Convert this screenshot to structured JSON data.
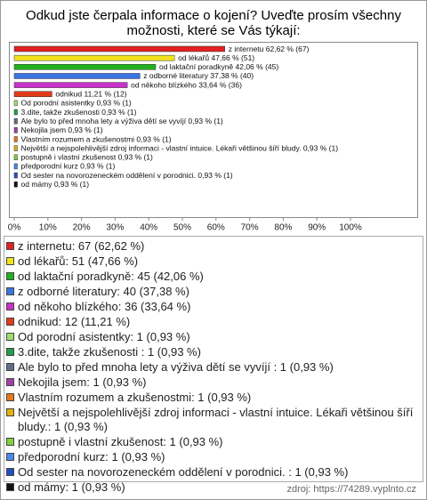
{
  "chart_data": {
    "type": "bar",
    "orientation": "horizontal",
    "title": "Odkud jste čerpala informace o kojení? Uveďte prosím všechny možnosti, které se Vás týkají:",
    "categories": [
      "z internetu",
      "od lékařů",
      "od laktační poradkyně",
      "z odborné literatury",
      "od někoho blízkého",
      "odnikud",
      "Od porodní asistentky",
      "3.dite, takže zkušenosti",
      "Ale bylo to před mnoha lety a výživa dětí se vyvíjí",
      "Nekojila jsem",
      "Vlastním rozumem a zkušenostmi",
      "Největší a nejspolehlivější zdroj informaci - vlastní intuice. Lékaři většinou šíří bludy.",
      "postupně i vlastní zkušenost",
      "předporodní kurz",
      "Od sester na novorozeneckém oddělení v porodnici.",
      "od mámy"
    ],
    "values": [
      62.62,
      47.66,
      42.06,
      37.38,
      33.64,
      11.21,
      0.93,
      0.93,
      0.93,
      0.93,
      0.93,
      0.93,
      0.93,
      0.93,
      0.93,
      0.93
    ],
    "value_labels": [
      "z internetu 62,62 % (67)",
      "od lékařů 47,66 % (51)",
      "od laktační poradkyně 42,06 % (45)",
      "z odborné literatury 37,38 % (40)",
      "od někoho blízkého 33,64 % (36)",
      "odnikud 11,21 % (12)",
      "Od porodní asistentky 0,93 % (1)",
      "3.dite, takže zkušenosti  0,93 % (1)",
      "Ale bylo to před mnoha lety a výživa dětí se vyvíjí  0,93 % (1)",
      "Nekojila jsem 0,93 % (1)",
      "Vlastním rozumem a zkušenostmi 0,93 % (1)",
      "Největší a nejspolehlivější zdroj informaci - vlastní intuice. Lékaři většinou šíří bludy. 0,93 % (1)",
      "postupně i vlastní zkušenost 0,93 % (1)",
      "předporodní kurz 0,93 % (1)",
      "Od sester na novorozeneckém oddělení v porodnici.  0,93 % (1)",
      "od mámy 0,93 % (1)"
    ],
    "legend_labels": [
      "z internetu: 67 (62,62 %)",
      "od lékařů: 51 (47,66 %)",
      "od laktační poradkyně: 45 (42,06 %)",
      "z odborné literatury: 40 (37,38 %)",
      "od někoho blízkého: 36 (33,64 %)",
      "odnikud: 12 (11,21 %)",
      "Od porodní asistentky: 1 (0,93 %)",
      "3.dite, takže zkušenosti : 1 (0,93 %)",
      "Ale bylo to před mnoha lety a výživa dětí se vyvíjí : 1 (0,93 %)",
      "Nekojila jsem: 1 (0,93 %)",
      "Vlastním rozumem a zkušenostmi: 1 (0,93 %)",
      "Největší a nejspolehlivější zdroj informaci - vlastní intuice. Lékaři většinou šíří bludy.: 1 (0,93 %)",
      "postupně i vlastní zkušenost: 1 (0,93 %)",
      "předporodní kurz: 1 (0,93 %)",
      "Od sester na novorozeneckém oddělení v porodnici. : 1 (0,93 %)",
      "od mámy: 1 (0,93 %)"
    ],
    "colors": [
      "#e02222",
      "#f2e41c",
      "#22b022",
      "#3a74e0",
      "#c832c8",
      "#e03c18",
      "#9ce070",
      "#22a04a",
      "#607088",
      "#a040a8",
      "#e8781c",
      "#e0b010",
      "#80d040",
      "#4a88f0",
      "#2250c0",
      "#111111"
    ],
    "xlim": [
      0,
      100
    ],
    "xticks": [
      {
        "value": 0,
        "label": "0%"
      },
      {
        "value": 10,
        "label": "10%"
      },
      {
        "value": 20,
        "label": "20%"
      },
      {
        "value": 30,
        "label": "30%"
      },
      {
        "value": 40,
        "label": "40%"
      },
      {
        "value": 50,
        "label": "50%"
      },
      {
        "value": 60,
        "label": "60%"
      },
      {
        "value": 70,
        "label": "70%"
      },
      {
        "value": 80,
        "label": "80%"
      },
      {
        "value": 90,
        "label": "90%"
      },
      {
        "value": 100,
        "label": "100%"
      }
    ],
    "grid": false,
    "source": "zdroj: https://74289.vyplnto.cz"
  }
}
